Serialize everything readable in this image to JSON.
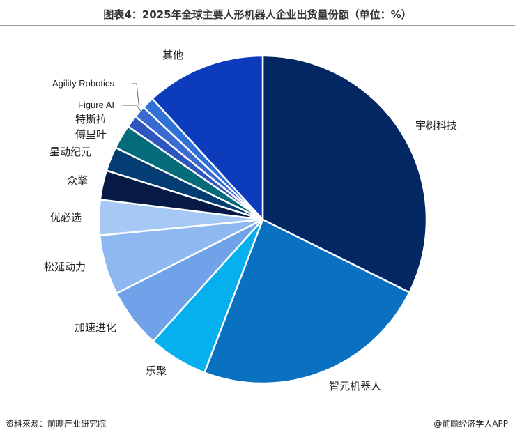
{
  "header": {
    "title": "图表4：2025年全球主要人形机器人企业出货量份额（单位：%）"
  },
  "footer": {
    "source": "资料来源：前瞻产业研究院",
    "brand": "@前瞻经济学人APP"
  },
  "chart_data": {
    "type": "pie",
    "title": "图表4：2025年全球主要人形机器人企业出货量份额（单位：%）",
    "start_angle_deg": 0,
    "direction": "clockwise",
    "categories": [
      "宇树科技",
      "智元机器人",
      "乐聚",
      "加速进化",
      "松延动力",
      "优必选",
      "众擎",
      "星动纪元",
      "傅里叶",
      "特斯拉",
      "Figure AI",
      "Agility Robotics",
      "其他"
    ],
    "values": [
      32.4,
      23.5,
      5.9,
      5.9,
      5.9,
      3.5,
      2.9,
      2.4,
      2.4,
      1.2,
      1.2,
      1.2,
      11.8
    ],
    "colors": [
      "#032762",
      "#0a70c0",
      "#06b0ee",
      "#6fa2e9",
      "#8db8f0",
      "#a6c8f5",
      "#071a45",
      "#033d74",
      "#036b7c",
      "#2f56be",
      "#3a6bd2",
      "#2f71d9",
      "#0c3cbc"
    ],
    "legend": "none"
  }
}
